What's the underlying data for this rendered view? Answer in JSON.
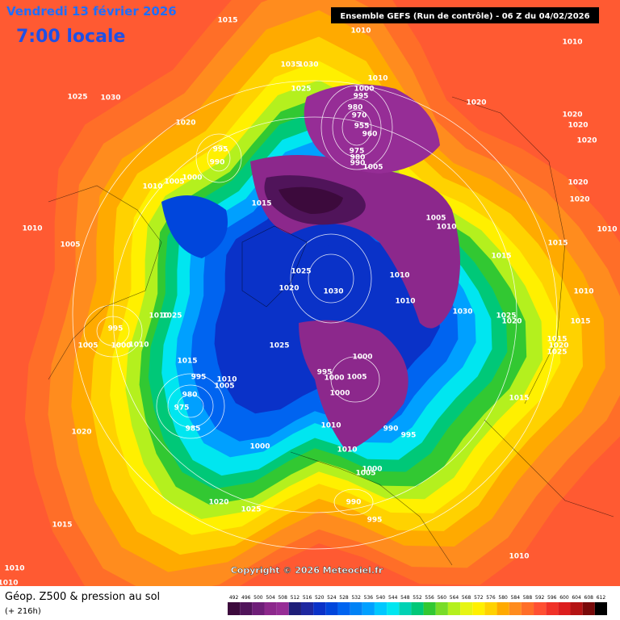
{
  "header": {
    "date": "Vendredi 13 février 2026",
    "time": "7:00 locale",
    "run": "Ensemble GEFS  (Run de contrôle)  -  06 Z du 04/02/2026"
  },
  "copyright": "Copyright © 2026 Meteociel.fr",
  "legend": {
    "title": "Géop. Z500 & pression au sol",
    "lead": "(+ 216h)",
    "scale": [
      492,
      496,
      500,
      504,
      508,
      512,
      516,
      520,
      524,
      528,
      532,
      536,
      540,
      544,
      548,
      552,
      556,
      560,
      564,
      568,
      572,
      576,
      580,
      584,
      588,
      592,
      596,
      600,
      604,
      608,
      612
    ],
    "colors": [
      "#3c0a3c",
      "#50145a",
      "#6e1e78",
      "#8c288c",
      "#962d96",
      "#1e1e78",
      "#1e28a0",
      "#0a32c8",
      "#0046dc",
      "#0064f0",
      "#0082f5",
      "#00a0ff",
      "#00c8ff",
      "#00e6f0",
      "#00d2b4",
      "#00c878",
      "#32c832",
      "#78dc28",
      "#b4f01e",
      "#e6f514",
      "#fff000",
      "#ffd200",
      "#ffaa00",
      "#ff8c1e",
      "#ff6e28",
      "#ff5032",
      "#f03228",
      "#dc1e1e",
      "#b41414",
      "#780a0a",
      "#000000"
    ]
  },
  "pressure_labels": [
    1015,
    1010,
    1010,
    1035,
    1030,
    1025,
    1010,
    1000,
    995,
    980,
    970,
    955,
    960,
    975,
    980,
    990,
    1005,
    1025,
    1030,
    1020,
    1020,
    1020,
    1020,
    1020,
    995,
    990,
    1000,
    1005,
    1010,
    1020,
    1020,
    1015,
    1005,
    1010,
    1010,
    1010,
    1005,
    1015,
    1015,
    1025,
    1010,
    1020,
    1030,
    1010,
    1010,
    1030,
    1025,
    1020,
    1015,
    995,
    1025,
    1010,
    1025,
    1015,
    1020,
    1025,
    1005,
    1000,
    1010,
    1000,
    1015,
    995,
    1000,
    1005,
    995,
    1010,
    1005,
    1000,
    980,
    975,
    1015,
    985,
    1010,
    990,
    995,
    1020,
    1000,
    1010,
    1000,
    1005,
    990,
    1020,
    1025,
    995,
    1015,
    1010,
    1010,
    1010
  ]
}
